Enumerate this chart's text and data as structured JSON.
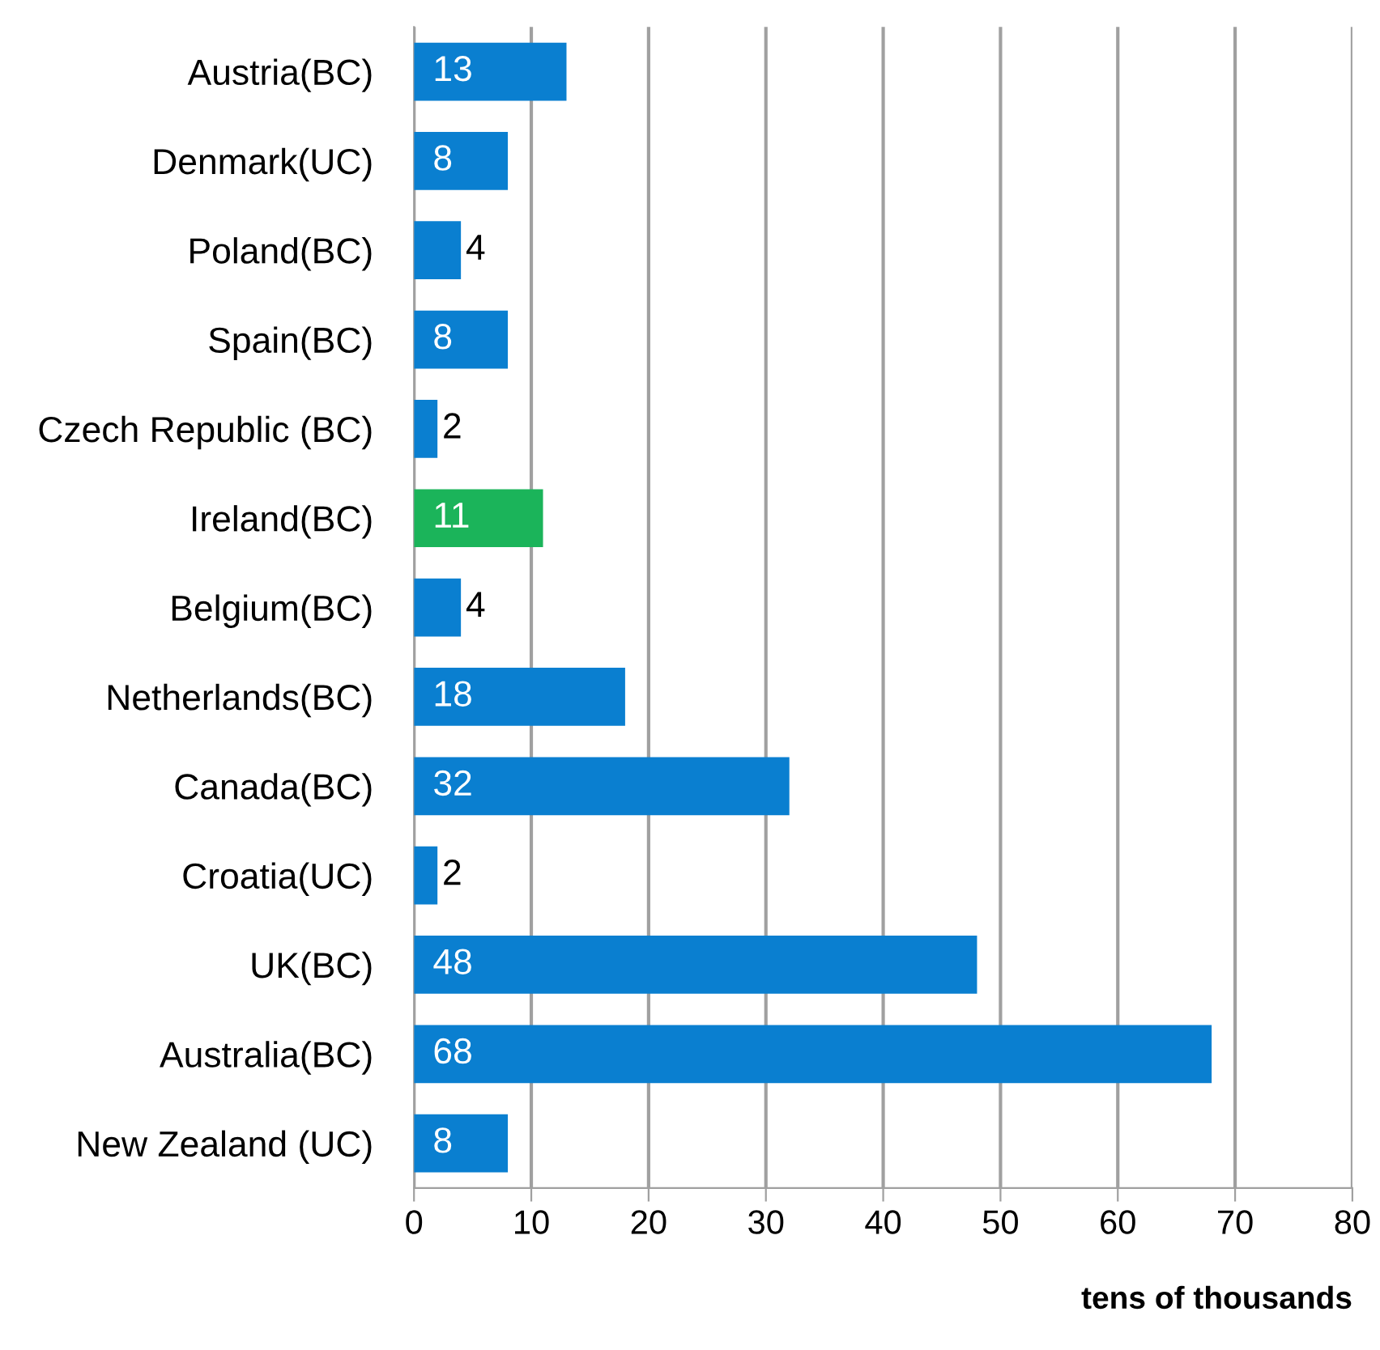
{
  "chart_data": {
    "type": "bar",
    "orientation": "horizontal",
    "xlabel": "tens of thousands",
    "categories": [
      "Austria(BC)",
      "Denmark(UC)",
      "Poland(BC)",
      "Spain(BC)",
      "Czech Republic (BC)",
      "Ireland(BC)",
      "Belgium(BC)",
      "Netherlands(BC)",
      "Canada(BC)",
      "Croatia(UC)",
      "UK(BC)",
      "Australia(BC)",
      "New Zealand (UC)"
    ],
    "values": [
      13,
      8,
      4,
      8,
      2,
      11,
      4,
      18,
      32,
      2,
      48,
      68,
      8
    ],
    "colors": [
      "#0a7fd0",
      "#0a7fd0",
      "#0a7fd0",
      "#0a7fd0",
      "#0a7fd0",
      "#1bb45a",
      "#0a7fd0",
      "#0a7fd0",
      "#0a7fd0",
      "#0a7fd0",
      "#0a7fd0",
      "#0a7fd0",
      "#0a7fd0"
    ],
    "data_labels": true,
    "xlim": [
      0,
      80
    ],
    "xticks": [
      0,
      10,
      20,
      30,
      40,
      50,
      60,
      70,
      80
    ],
    "grid": "x",
    "legend": false
  }
}
